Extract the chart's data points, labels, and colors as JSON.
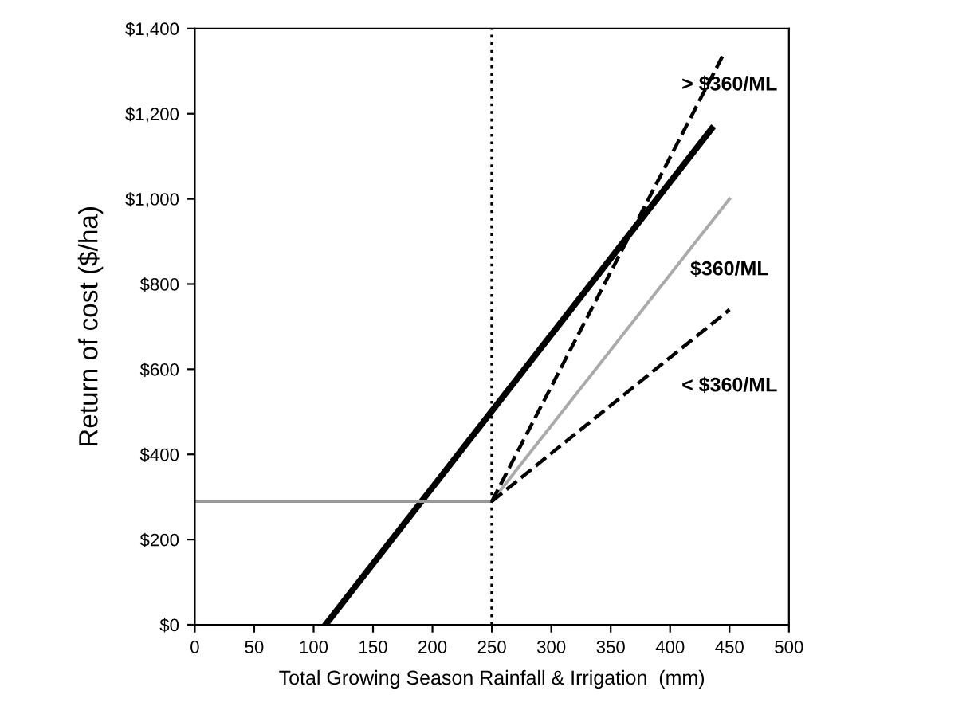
{
  "chart_data": {
    "type": "line",
    "xlabel": "Total Growing Season Rainfall & Irrigation  (mm)",
    "ylabel": "Return of cost ($/ha)",
    "series": [
      {
        "x": [
          110,
          435
        ],
        "values": [
          0,
          1165
        ],
        "color": "#000000",
        "line_style": "solid"
      },
      {
        "x": [
          0,
          250
        ],
        "values": [
          290,
          290
        ],
        "color": "#999999",
        "line_style": "solid"
      },
      {
        "x": [
          250,
          450
        ],
        "values": [
          290,
          1000
        ],
        "color": "#aaaaaa",
        "line_style": "solid"
      },
      {
        "x": [
          250,
          445
        ],
        "values": [
          290,
          1340
        ],
        "color": "#000000",
        "line_style": "dashed"
      },
      {
        "x": [
          250,
          450
        ],
        "values": [
          290,
          740
        ],
        "color": "#000000",
        "line_style": "dashed"
      }
    ],
    "ref_lines": [
      {
        "axis": "x",
        "value": 250,
        "color": "#000000",
        "line_style": "dotted"
      }
    ],
    "annotations": [
      "> $360/ML",
      "$360/ML",
      "< $360/ML"
    ],
    "xlim": [
      0,
      500
    ],
    "xticks": [
      0,
      50,
      100,
      150,
      200,
      250,
      300,
      350,
      400,
      450,
      500
    ],
    "ylim": [
      0,
      1400
    ],
    "yticks": [
      {
        "value": 0,
        "label": "$0"
      },
      {
        "value": 200,
        "label": "$200"
      },
      {
        "value": 400,
        "label": "$400"
      },
      {
        "value": 600,
        "label": "$600"
      },
      {
        "value": 800,
        "label": "$800"
      },
      {
        "value": 1000,
        "label": "$1,000"
      },
      {
        "value": 1200,
        "label": "$1,200"
      },
      {
        "value": 1400,
        "label": "$1,400"
      }
    ],
    "grid": false,
    "legend": false
  }
}
